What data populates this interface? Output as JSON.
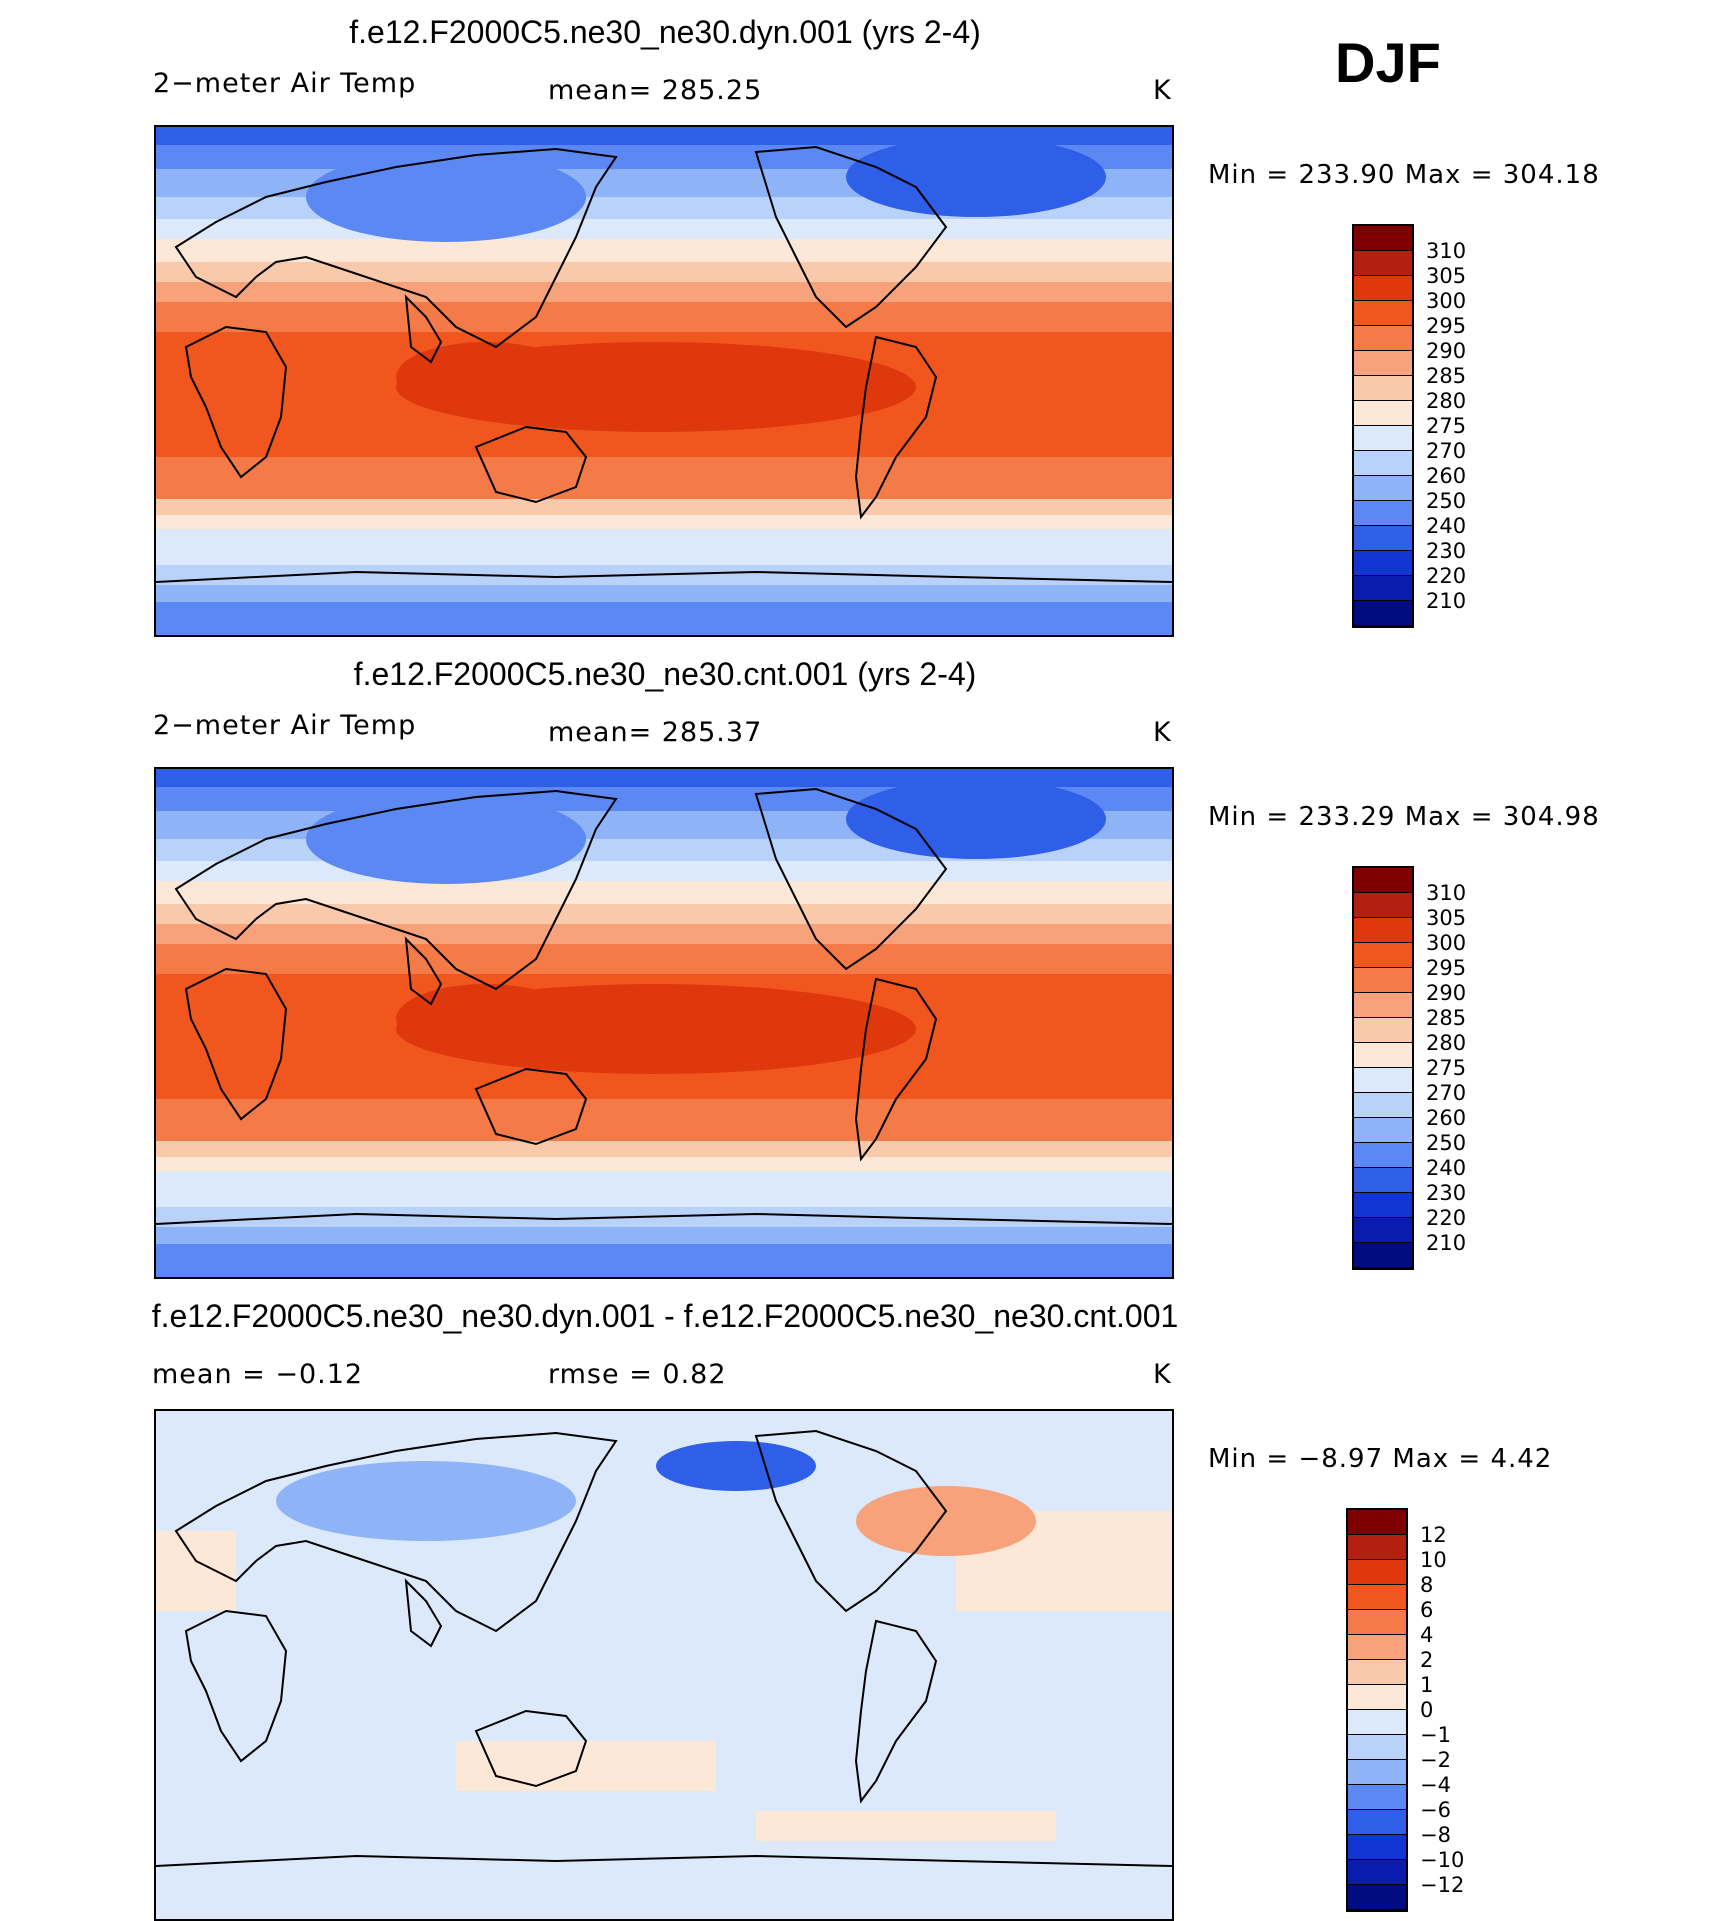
{
  "season": "DJF",
  "panels": [
    {
      "title": "f.e12.F2000C5.ne30_ne30.dyn.001 (yrs 2-4)",
      "variable": "2−meter Air Temp",
      "stat1": "mean=  285.25",
      "stat2": "",
      "units": "K",
      "minmax": "Min  =  233.90 Max  =  304.18",
      "colorbar": {
        "labels": [
          "310",
          "305",
          "300",
          "295",
          "290",
          "285",
          "280",
          "275",
          "270",
          "260",
          "250",
          "240",
          "230",
          "220",
          "210"
        ],
        "colors": [
          "#7f0000",
          "#b3200f",
          "#e0380d",
          "#f2561f",
          "#f47a47",
          "#f7a27a",
          "#f9c9ac",
          "#fde8d8",
          "#dce9fb",
          "#b9d2f9",
          "#8eb3f7",
          "#5b88f2",
          "#2f5fe8",
          "#1035d3",
          "#0a1cad",
          "#000c80"
        ]
      },
      "field": "temp"
    },
    {
      "title": "f.e12.F2000C5.ne30_ne30.cnt.001 (yrs 2-4)",
      "variable": "2−meter Air Temp",
      "stat1": "mean=  285.37",
      "stat2": "",
      "units": "K",
      "minmax": "Min  =  233.29 Max  =  304.98",
      "colorbar": {
        "labels": [
          "310",
          "305",
          "300",
          "295",
          "290",
          "285",
          "280",
          "275",
          "270",
          "260",
          "250",
          "240",
          "230",
          "220",
          "210"
        ],
        "colors": [
          "#7f0000",
          "#b3200f",
          "#e0380d",
          "#f2561f",
          "#f47a47",
          "#f7a27a",
          "#f9c9ac",
          "#fde8d8",
          "#dce9fb",
          "#b9d2f9",
          "#8eb3f7",
          "#5b88f2",
          "#2f5fe8",
          "#1035d3",
          "#0a1cad",
          "#000c80"
        ]
      },
      "field": "temp"
    },
    {
      "title": "f.e12.F2000C5.ne30_ne30.dyn.001 - f.e12.F2000C5.ne30_ne30.cnt.001",
      "variable": "mean  =   −0.12",
      "stat1": "rmse  =     0.82",
      "stat2": "",
      "units": "K",
      "minmax": "Min  =   −8.97 Max  =     4.42",
      "colorbar": {
        "labels": [
          "12",
          "10",
          "8",
          "6",
          "4",
          "2",
          "1",
          "0",
          "−1",
          "−2",
          "−4",
          "−6",
          "−8",
          "−10",
          "−12"
        ],
        "colors": [
          "#7f0000",
          "#b3200f",
          "#e0380d",
          "#f2561f",
          "#f47a47",
          "#f7a27a",
          "#f9c9ac",
          "#fde8d8",
          "#dce9fb",
          "#b9d2f9",
          "#8eb3f7",
          "#5b88f2",
          "#2f5fe8",
          "#1035d3",
          "#0a1cad",
          "#000c80"
        ]
      },
      "field": "diff"
    }
  ]
}
